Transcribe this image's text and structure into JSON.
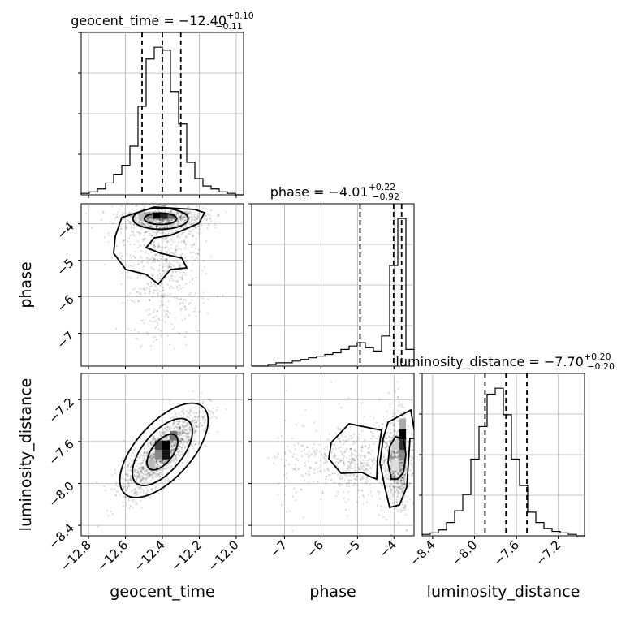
{
  "chart_data": {
    "type": "corner",
    "parameters": [
      {
        "name": "geocent_time",
        "title": {
          "main": "geocent_time = −12.40",
          "sup": "+0.10",
          "sub": "−0.11"
        },
        "median": -12.4,
        "quantiles": [
          -12.51,
          -12.4,
          -12.3
        ],
        "range": [
          -12.84,
          -11.96
        ],
        "ticks": [
          -12.8,
          -12.6,
          -12.4,
          -12.2,
          -12.0
        ],
        "tick_labels": [
          "−12.8",
          "−12.6",
          "−12.4",
          "−12.2",
          "−12.0"
        ],
        "hist_edges_start": -12.84,
        "hist_bin_width": 0.044,
        "hist_counts": [
          1,
          2,
          4,
          8,
          14,
          20,
          33,
          60,
          92,
          100,
          98,
          70,
          48,
          22,
          11,
          6,
          4,
          2,
          1,
          0
        ]
      },
      {
        "name": "phase",
        "title": {
          "main": "phase = −4.01",
          "sup": "+0.22",
          "sub": "−0.92"
        },
        "median": -4.01,
        "quantiles": [
          -4.93,
          -4.01,
          -3.79
        ],
        "range": [
          -7.9,
          -3.45
        ],
        "ticks": [
          -7,
          -6,
          -5,
          -4
        ],
        "tick_labels": [
          "−7",
          "−6",
          "−5",
          "−4"
        ],
        "hist_edges_start": -7.9,
        "hist_bin_width": 0.2225,
        "hist_counts": [
          0,
          0,
          1,
          2,
          2,
          3,
          4,
          5,
          6,
          7,
          8,
          10,
          12,
          14,
          11,
          9,
          18,
          60,
          88,
          10
        ]
      },
      {
        "name": "luminosity_distance",
        "title": {
          "main": "luminosity_distance = −7.70",
          "sup": "+0.20",
          "sub": "−0.20"
        },
        "median": -7.7,
        "quantiles": [
          -7.9,
          -7.7,
          -7.5
        ],
        "range": [
          -8.5,
          -6.95
        ],
        "ticks": [
          -8.4,
          -8.0,
          -7.6,
          -7.2
        ],
        "tick_labels": [
          "−8.4",
          "−8.0",
          "−7.6",
          "−7.2"
        ],
        "hist_edges_start": -8.5,
        "hist_bin_width": 0.0775,
        "hist_counts": [
          1,
          2,
          4,
          9,
          17,
          28,
          52,
          74,
          96,
          100,
          82,
          52,
          34,
          16,
          9,
          5,
          3,
          2,
          1,
          0
        ]
      }
    ],
    "xlabels": [
      "geocent_time",
      "phase",
      "luminosity_distance"
    ],
    "ylabels": [
      "phase",
      "luminosity_distance"
    ],
    "quantile_levels": [
      0.16,
      0.5,
      0.84
    ],
    "grid": true,
    "samples_style": "scatter"
  }
}
